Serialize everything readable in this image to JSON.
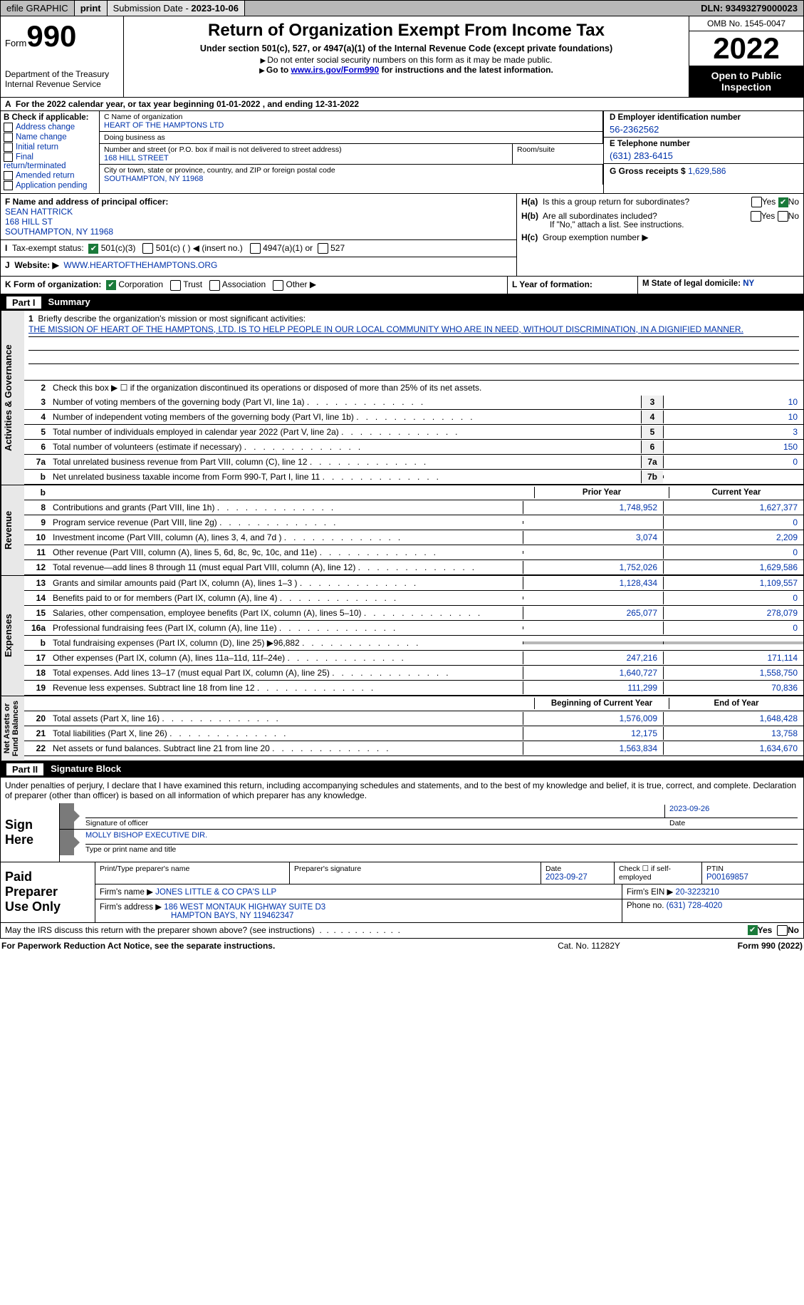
{
  "topbar": {
    "efile": "efile GRAPHIC",
    "print": "print",
    "sub_label": "Submission Date - ",
    "sub_date": "2023-10-06",
    "dln_label": "DLN: ",
    "dln": "93493279000023"
  },
  "header": {
    "form_word": "Form",
    "form_num": "990",
    "dept": "Department of the Treasury\nInternal Revenue Service",
    "title": "Return of Organization Exempt From Income Tax",
    "sub": "Under section 501(c), 527, or 4947(a)(1) of the Internal Revenue Code (except private foundations)",
    "sub2": "Do not enter social security numbers on this form as it may be made public.",
    "sub3_pre": "Go to ",
    "sub3_link": "www.irs.gov/Form990",
    "sub3_post": " for instructions and the latest information.",
    "omb": "OMB No. 1545-0047",
    "year": "2022",
    "open": "Open to Public\nInspection"
  },
  "row_a": "For the 2022 calendar year, or tax year beginning 01-01-2022    , and ending 12-31-2022",
  "col_b": {
    "label": "B Check if applicable:",
    "opts": [
      "Address change",
      "Name change",
      "Initial return",
      "Final return/terminated",
      "Amended return",
      "Application pending"
    ]
  },
  "col_c": {
    "name_label": "C Name of organization",
    "name": "HEART OF THE HAMPTONS LTD",
    "dba_label": "Doing business as",
    "dba": "",
    "street_label": "Number and street (or P.O. box if mail is not delivered to street address)",
    "street": "168 HILL STREET",
    "room_label": "Room/suite",
    "city_label": "City or town, state or province, country, and ZIP or foreign postal code",
    "city": "SOUTHAMPTON, NY  11968"
  },
  "col_d": {
    "d_label": "D Employer identification number",
    "d_val": "56-2362562",
    "e_label": "E Telephone number",
    "e_val": "(631) 283-6415",
    "g_label": "G Gross receipts $ ",
    "g_val": "1,629,586"
  },
  "section_f": {
    "f_label": "F  Name and address of principal officer:",
    "f_name": "SEAN HATTRICK",
    "f_addr1": "168 HILL ST",
    "f_addr2": "SOUTHAMPTON, NY  11968",
    "i_label": "Tax-exempt status:",
    "i_501c3": "501(c)(3)",
    "i_501c": "501(c) (   )  ◀ (insert no.)",
    "i_4947": "4947(a)(1) or",
    "i_527": "527",
    "j_label": "Website: ▶",
    "j_val": "WWW.HEARTOFTHEHAMPTONS.ORG",
    "ha": "Is this a group return for subordinates?",
    "hb": "Are all subordinates included?",
    "hb_note": "If \"No,\" attach a list. See instructions.",
    "hc": "Group exemption number ▶",
    "yes": "Yes",
    "no": "No",
    "ha_tag": "H(a)",
    "hb_tag": "H(b)",
    "hc_tag": "H(c)"
  },
  "section_k": {
    "k_label": "K Form of organization:",
    "corp": "Corporation",
    "trust": "Trust",
    "assoc": "Association",
    "other": "Other ▶",
    "l_label": "L Year of formation:",
    "l_val": "",
    "m_label": "M State of legal domicile: ",
    "m_val": "NY"
  },
  "part1": {
    "title": "Part I",
    "name": "Summary"
  },
  "mission": {
    "q_num": "1",
    "q": "Briefly describe the organization's mission or most significant activities:",
    "text": "THE MISSION OF HEART OF THE HAMPTONS, LTD. IS TO HELP PEOPLE IN OUR LOCAL COMMUNITY WHO ARE IN NEED, WITHOUT DISCRIMINATION, IN A DIGNIFIED MANNER."
  },
  "gov_lines": [
    {
      "num": "2",
      "desc": "Check this box ▶ ☐  if the organization discontinued its operations or disposed of more than 25% of its net assets.",
      "box": "",
      "val": ""
    },
    {
      "num": "3",
      "desc": "Number of voting members of the governing body (Part VI, line 1a)",
      "box": "3",
      "val": "10"
    },
    {
      "num": "4",
      "desc": "Number of independent voting members of the governing body (Part VI, line 1b)",
      "box": "4",
      "val": "10"
    },
    {
      "num": "5",
      "desc": "Total number of individuals employed in calendar year 2022 (Part V, line 2a)",
      "box": "5",
      "val": "3"
    },
    {
      "num": "6",
      "desc": "Total number of volunteers (estimate if necessary)",
      "box": "6",
      "val": "150"
    },
    {
      "num": "7a",
      "desc": "Total unrelated business revenue from Part VIII, column (C), line 12",
      "box": "7a",
      "val": "0"
    },
    {
      "num": "b",
      "desc": "Net unrelated business taxable income from Form 990-T, Part I, line 11",
      "box": "7b",
      "val": ""
    }
  ],
  "col_headers": {
    "prior": "Prior Year",
    "current": "Current Year",
    "boc": "Beginning of Current Year",
    "eoy": "End of Year"
  },
  "revenue_lines": [
    {
      "num": "8",
      "desc": "Contributions and grants (Part VIII, line 1h)",
      "p": "1,748,952",
      "c": "1,627,377"
    },
    {
      "num": "9",
      "desc": "Program service revenue (Part VIII, line 2g)",
      "p": "",
      "c": "0"
    },
    {
      "num": "10",
      "desc": "Investment income (Part VIII, column (A), lines 3, 4, and 7d )",
      "p": "3,074",
      "c": "2,209"
    },
    {
      "num": "11",
      "desc": "Other revenue (Part VIII, column (A), lines 5, 6d, 8c, 9c, 10c, and 11e)",
      "p": "",
      "c": "0"
    },
    {
      "num": "12",
      "desc": "Total revenue—add lines 8 through 11 (must equal Part VIII, column (A), line 12)",
      "p": "1,752,026",
      "c": "1,629,586"
    }
  ],
  "expense_lines": [
    {
      "num": "13",
      "desc": "Grants and similar amounts paid (Part IX, column (A), lines 1–3 )",
      "p": "1,128,434",
      "c": "1,109,557"
    },
    {
      "num": "14",
      "desc": "Benefits paid to or for members (Part IX, column (A), line 4)",
      "p": "",
      "c": "0"
    },
    {
      "num": "15",
      "desc": "Salaries, other compensation, employee benefits (Part IX, column (A), lines 5–10)",
      "p": "265,077",
      "c": "278,079"
    },
    {
      "num": "16a",
      "desc": "Professional fundraising fees (Part IX, column (A), line 11e)",
      "p": "",
      "c": "0"
    },
    {
      "num": "b",
      "desc": "Total fundraising expenses (Part IX, column (D), line 25) ▶96,882",
      "p": "GRAY",
      "c": "GRAY"
    },
    {
      "num": "17",
      "desc": "Other expenses (Part IX, column (A), lines 11a–11d, 11f–24e)",
      "p": "247,216",
      "c": "171,114"
    },
    {
      "num": "18",
      "desc": "Total expenses. Add lines 13–17 (must equal Part IX, column (A), line 25)",
      "p": "1,640,727",
      "c": "1,558,750"
    },
    {
      "num": "19",
      "desc": "Revenue less expenses. Subtract line 18 from line 12",
      "p": "111,299",
      "c": "70,836"
    }
  ],
  "netasset_lines": [
    {
      "num": "20",
      "desc": "Total assets (Part X, line 16)",
      "p": "1,576,009",
      "c": "1,648,428"
    },
    {
      "num": "21",
      "desc": "Total liabilities (Part X, line 26)",
      "p": "12,175",
      "c": "13,758"
    },
    {
      "num": "22",
      "desc": "Net assets or fund balances. Subtract line 21 from line 20",
      "p": "1,563,834",
      "c": "1,634,670"
    }
  ],
  "vlabels": {
    "act": "Activities & Governance",
    "rev": "Revenue",
    "exp": "Expenses",
    "net": "Net Assets or\nFund Balances"
  },
  "part2": {
    "title": "Part II",
    "name": "Signature Block"
  },
  "sig_text": "Under penalties of perjury, I declare that I have examined this return, including accompanying schedules and statements, and to the best of my knowledge and belief, it is true, correct, and complete. Declaration of preparer (other than officer) is based on all information of which preparer has any knowledge.",
  "sign_here": {
    "label": "Sign\nHere",
    "sig_of": "Signature of officer",
    "date": "2023-09-26",
    "date_lbl": "Date",
    "name": "MOLLY BISHOP  EXECUTIVE DIR.",
    "name_lbl": "Type or print name and title"
  },
  "paid": {
    "label": "Paid\nPreparer\nUse Only",
    "r1": {
      "c1_lbl": "Print/Type preparer's name",
      "c1": "",
      "c2_lbl": "Preparer's signature",
      "c3_lbl": "Date",
      "c3": "2023-09-27",
      "c4_lbl": "Check ☐ if self-employed",
      "c5_lbl": "PTIN",
      "c5": "P00169857"
    },
    "r2": {
      "lbl": "Firm's name    ▶",
      "val": "JONES LITTLE & CO CPA'S LLP",
      "ein_lbl": "Firm's EIN ▶",
      "ein": "20-3223210"
    },
    "r3": {
      "lbl": "Firm's address ▶",
      "val1": "186 WEST MONTAUK HIGHWAY SUITE D3",
      "val2": "HAMPTON BAYS, NY  119462347",
      "ph_lbl": "Phone no.",
      "ph": "(631) 728-4020"
    }
  },
  "may_irs": {
    "text": "May the IRS discuss this return with the preparer shown above? (see instructions)",
    "yes": "Yes",
    "no": "No"
  },
  "footer": {
    "l": "For Paperwork Reduction Act Notice, see the separate instructions.",
    "m": "Cat. No. 11282Y",
    "r": "Form 990 (2022)"
  }
}
